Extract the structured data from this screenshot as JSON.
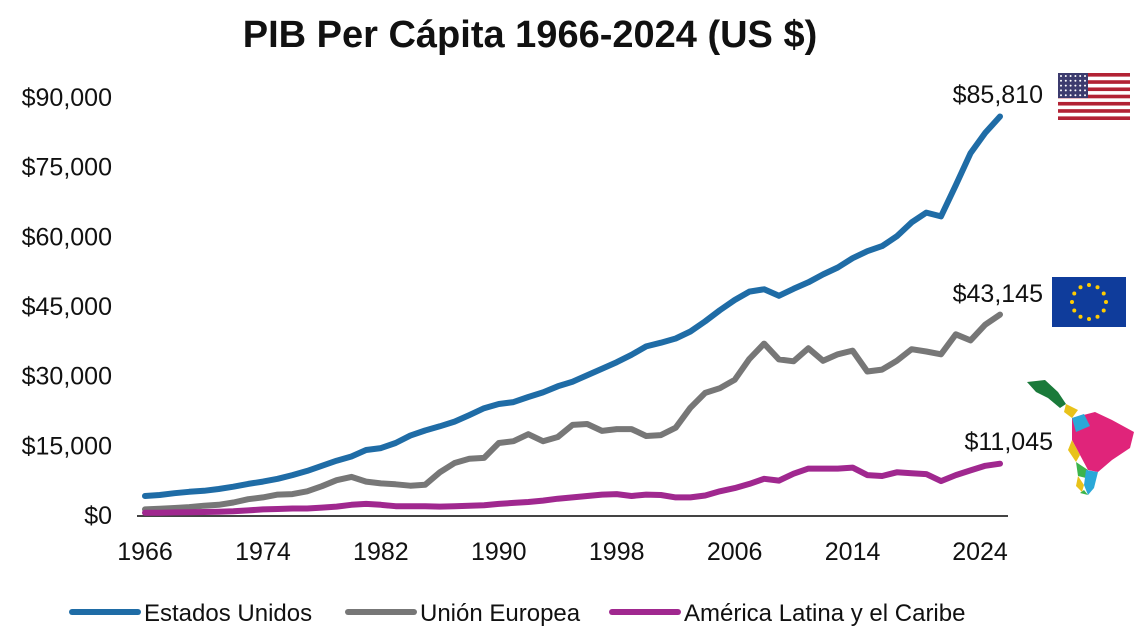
{
  "chart_data": {
    "type": "line",
    "title": "PIB Per Cápita 1966-2024 (US $)",
    "xlabel": "",
    "ylabel": "",
    "xlim": [
      1966,
      2024
    ],
    "ylim": [
      0,
      90000
    ],
    "grid": false,
    "legend_position": "bottom",
    "x_ticks": [
      "1966",
      "1974",
      "1982",
      "1990",
      "1998",
      "2006",
      "2014",
      "2024"
    ],
    "y_ticks": [
      {
        "value": 0,
        "label": "$0"
      },
      {
        "value": 15000,
        "label": "$15,000"
      },
      {
        "value": 30000,
        "label": "$30,000"
      },
      {
        "value": 45000,
        "label": "$45,000"
      },
      {
        "value": 60000,
        "label": "$60,000"
      },
      {
        "value": 75000,
        "label": "$75,000"
      },
      {
        "value": 90000,
        "label": "$90,000"
      }
    ],
    "x_start": 1966,
    "series": [
      {
        "name": "Estados Unidos",
        "color": "#1f6ca6",
        "end_label": "$85,810",
        "marker": "us-flag",
        "values": [
          4100,
          4300,
          4700,
          5000,
          5200,
          5600,
          6100,
          6700,
          7200,
          7800,
          8600,
          9500,
          10600,
          11700,
          12600,
          14000,
          14400,
          15500,
          17100,
          18200,
          19100,
          20100,
          21500,
          23000,
          23900,
          24300,
          25400,
          26400,
          27700,
          28700,
          30100,
          31500,
          32900,
          34500,
          36300,
          37100,
          38000,
          39500,
          41700,
          44100,
          46300,
          48100,
          48600,
          47200,
          48700,
          50100,
          51800,
          53300,
          55300,
          56800,
          57900,
          60000,
          63000,
          65100,
          64300,
          71000,
          77900,
          82300,
          85810
        ]
      },
      {
        "name": "Unión Europea",
        "color": "#777777",
        "end_label": "$43,145",
        "marker": "eu-flag",
        "values": [
          1200,
          1350,
          1500,
          1700,
          2000,
          2200,
          2700,
          3400,
          3800,
          4400,
          4500,
          5100,
          6200,
          7500,
          8200,
          7200,
          6800,
          6600,
          6300,
          6500,
          9200,
          11200,
          12100,
          12300,
          15500,
          15900,
          17400,
          15900,
          16800,
          19400,
          19600,
          18100,
          18500,
          18500,
          17000,
          17200,
          18800,
          23100,
          26300,
          27300,
          29100,
          33600,
          36900,
          33500,
          33100,
          35900,
          33200,
          34600,
          35400,
          30900,
          31300,
          33200,
          35700,
          35200,
          34600,
          38900,
          37600,
          41000,
          43145
        ]
      },
      {
        "name": "América Latina y el Caribe",
        "color": "#a0288f",
        "end_label": "$11,045",
        "marker": "latin-america-map",
        "values": [
          500,
          500,
          550,
          600,
          650,
          700,
          800,
          1000,
          1200,
          1300,
          1400,
          1400,
          1600,
          1800,
          2200,
          2400,
          2200,
          1900,
          1900,
          1900,
          1800,
          1900,
          2000,
          2100,
          2400,
          2600,
          2800,
          3100,
          3500,
          3800,
          4100,
          4400,
          4500,
          4100,
          4400,
          4300,
          3800,
          3800,
          4200,
          5100,
          5800,
          6700,
          7800,
          7400,
          8900,
          10000,
          10000,
          10000,
          10200,
          8600,
          8400,
          9200,
          9000,
          8800,
          7300,
          8600,
          9600,
          10600,
          11045
        ]
      }
    ]
  }
}
